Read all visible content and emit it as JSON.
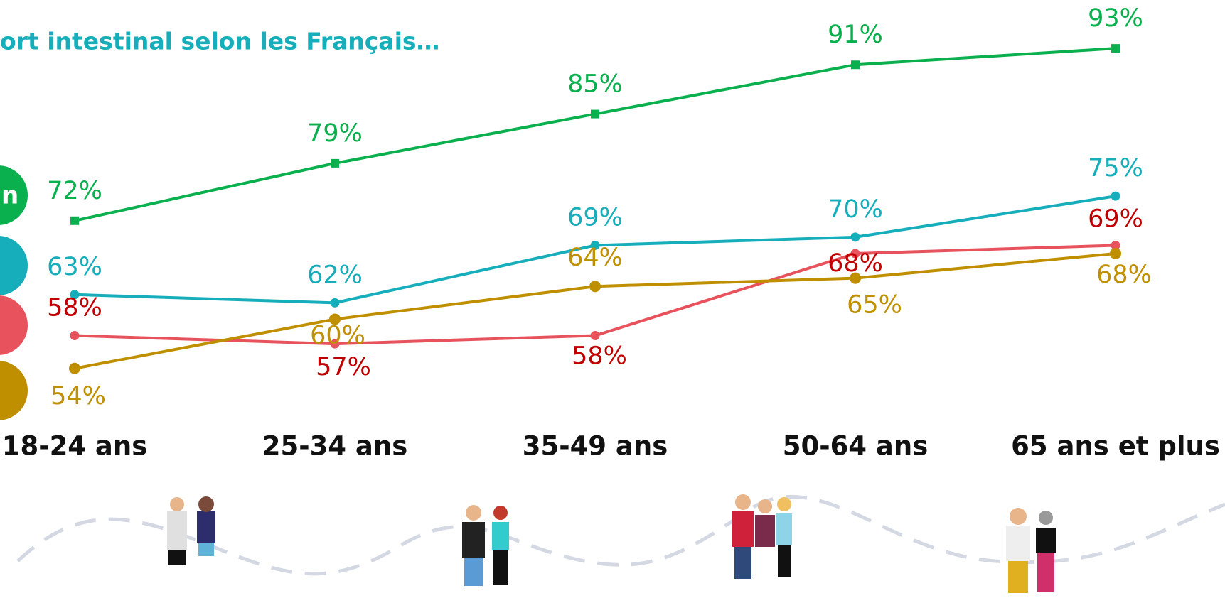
{
  "chart_data": {
    "type": "line",
    "title": "ort intestinal selon les Français…",
    "categories": [
      "18-24 ans",
      "25-34 ans",
      "35-49 ans",
      "50-64 ans",
      "65 ans et plus"
    ],
    "series": [
      {
        "name": "n",
        "color": "#0ab04e",
        "label_color": "#0ab04e",
        "marker": "square",
        "values": [
          72,
          79,
          85,
          91,
          93
        ],
        "value_labels": [
          "72%",
          "79%",
          "85%",
          "91%",
          "93%"
        ]
      },
      {
        "color": "#17aebb",
        "label_color": "#17aebb",
        "marker": "circle",
        "values": [
          63,
          62,
          69,
          70,
          75
        ],
        "value_labels": [
          "63%",
          "62%",
          "69%",
          "70%",
          "75%"
        ]
      },
      {
        "color": "#e8525c",
        "label_color": "#c00000",
        "marker": "circle",
        "values": [
          58,
          57,
          58,
          68,
          69
        ],
        "value_labels": [
          "58%",
          "57%",
          "58%",
          "68%",
          "69%"
        ]
      },
      {
        "color": "#bf8f00",
        "label_color": "#c09000",
        "marker": "circle",
        "values": [
          54,
          60,
          64,
          65,
          68
        ],
        "value_labels": [
          "54%",
          "60%",
          "64%",
          "65%",
          "68%"
        ]
      }
    ],
    "ylim": [
      50,
      95
    ]
  }
}
